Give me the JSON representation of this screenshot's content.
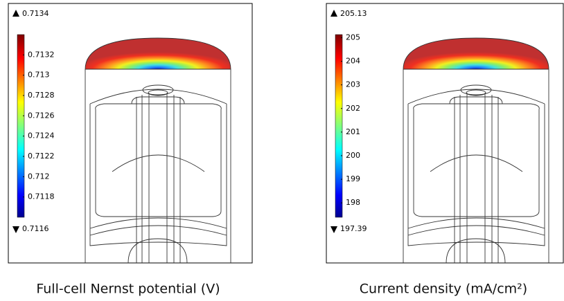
{
  "panels": [
    {
      "max": 0.7134,
      "min": 0.7116,
      "ticks": [
        0.7132,
        0.713,
        0.7128,
        0.7126,
        0.7124,
        0.7122,
        0.712,
        0.7118
      ],
      "caption": "Full-cell Nernst potential (V)"
    },
    {
      "max": 205.13,
      "min": 197.39,
      "ticks": [
        205,
        204,
        203,
        202,
        201,
        200,
        199,
        198
      ],
      "caption": "Current density (mA/cm²)"
    }
  ]
}
